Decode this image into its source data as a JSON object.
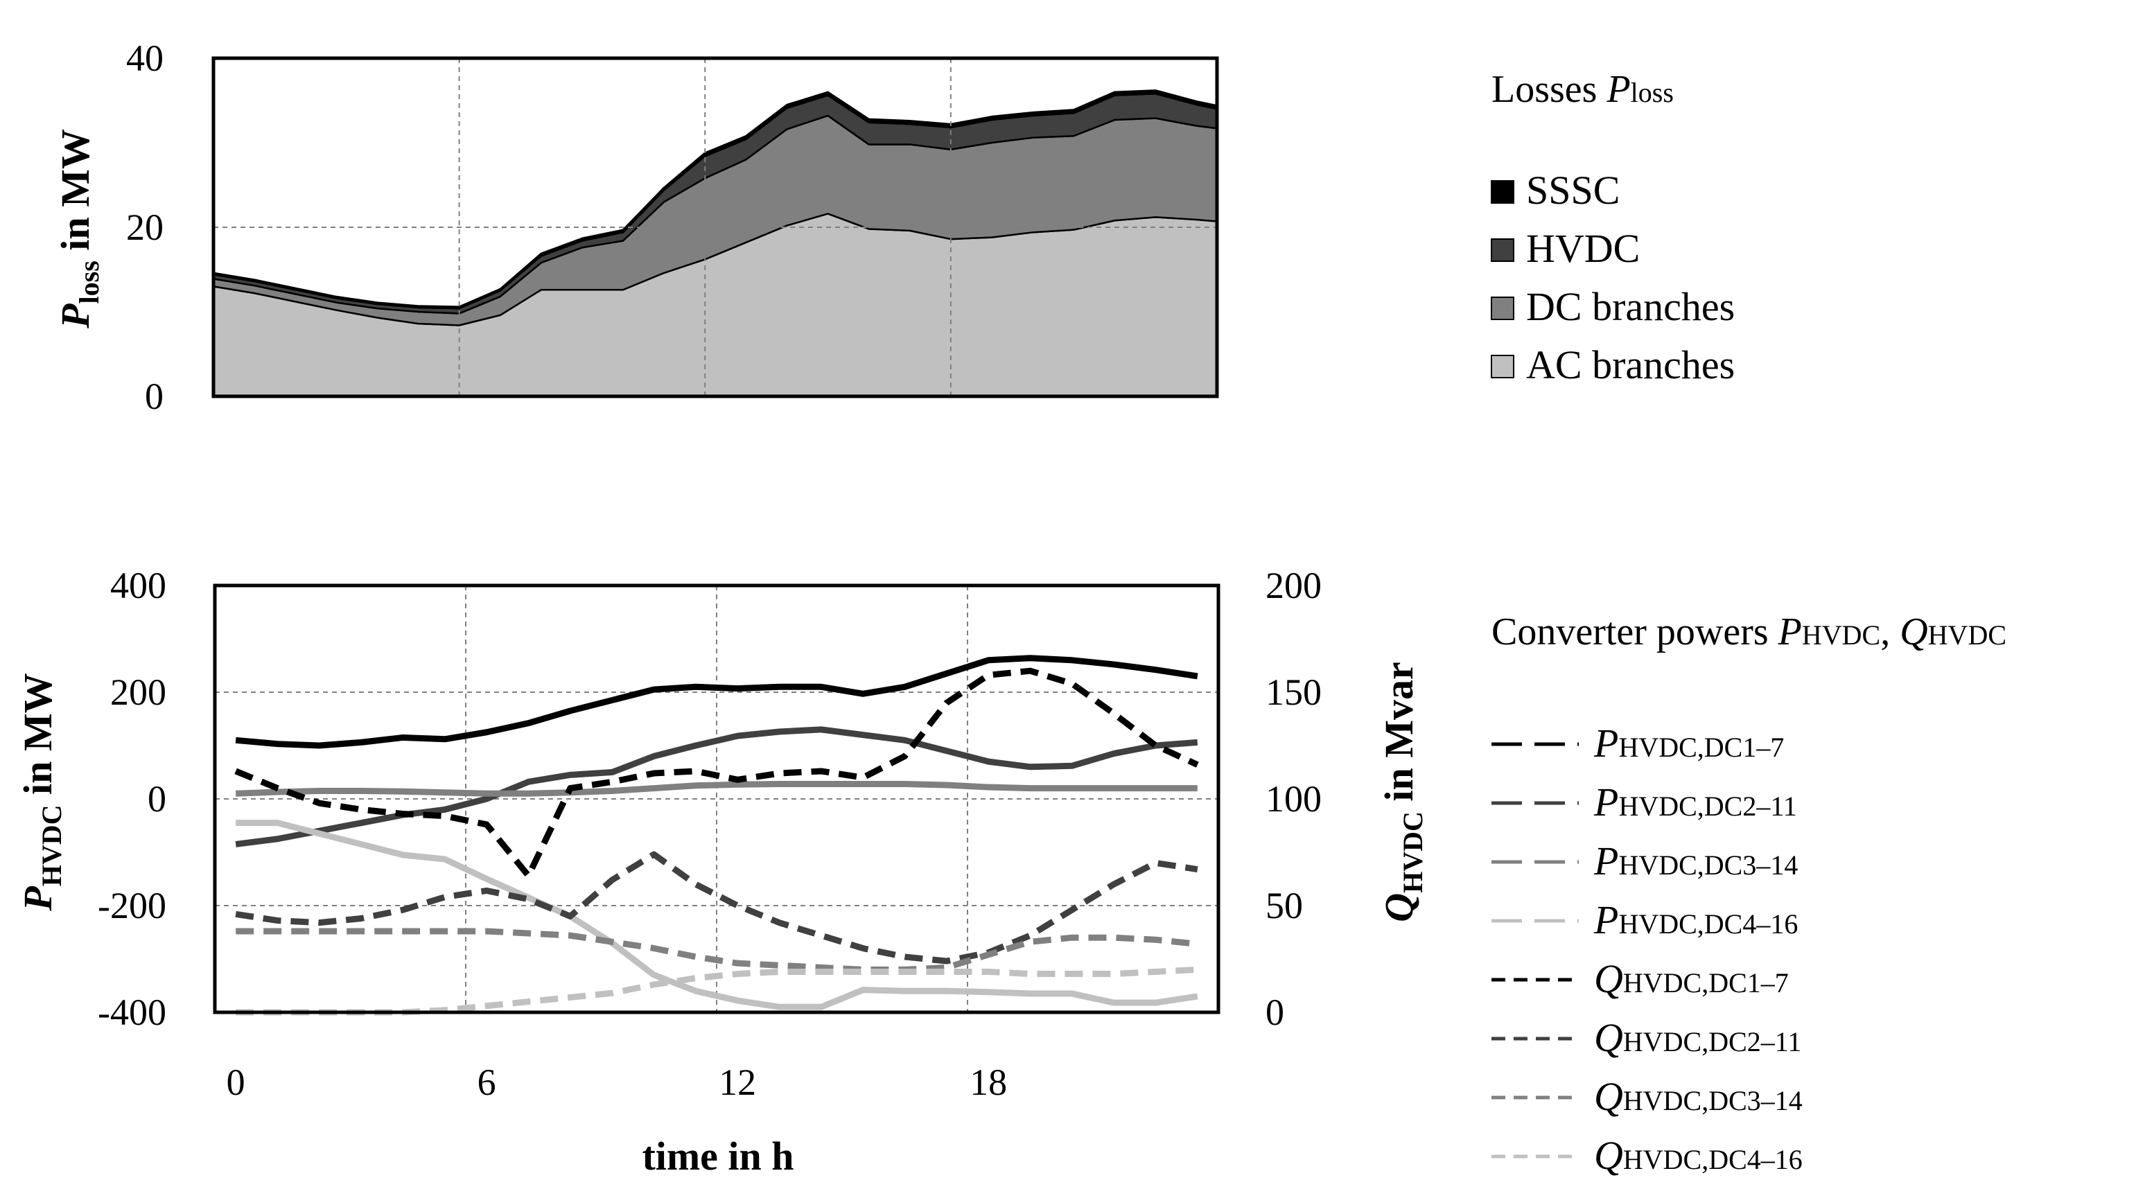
{
  "chart_data": [
    {
      "type": "area",
      "stacked": true,
      "title": "",
      "xlabel": "",
      "ylabel": "P_loss in MW",
      "ylabel_parts": {
        "main": "P",
        "sub": "loss",
        "rest": " in MW"
      },
      "xlim": [
        -1,
        23.5
      ],
      "ylim": [
        0,
        40
      ],
      "yticks": [
        0,
        20,
        40
      ],
      "xgrid": [
        5,
        11,
        17
      ],
      "x": [
        -1,
        0,
        1,
        2,
        3,
        4,
        5,
        6,
        7,
        8,
        9,
        10,
        11,
        12,
        13,
        14,
        15,
        16,
        17,
        18,
        19,
        20,
        21,
        22,
        23,
        23.5
      ],
      "series": [
        {
          "name": "AC branches",
          "color": "#c0c0c0",
          "values": [
            13,
            12.2,
            11.2,
            10.2,
            9.3,
            8.6,
            8.4,
            9.6,
            12.6,
            12.6,
            12.6,
            14.6,
            16.2,
            18.2,
            20.2,
            21.6,
            19.8,
            19.6,
            18.6,
            18.8,
            19.4,
            19.7,
            20.8,
            21.2,
            20.9,
            20.7
          ]
        },
        {
          "name": "DC branches",
          "color": "#808080",
          "values": [
            0.9,
            0.9,
            0.9,
            0.9,
            1.1,
            1.4,
            1.4,
            2.2,
            3.2,
            5,
            5.8,
            8.4,
            9.6,
            9.8,
            11.4,
            11.6,
            10,
            10.2,
            10.6,
            11.2,
            11.2,
            11.1,
            11.9,
            11.7,
            11.1,
            11
          ]
        },
        {
          "name": "HVDC",
          "color": "#404040",
          "values": [
            0.5,
            0.5,
            0.5,
            0.5,
            0.5,
            0.5,
            0.6,
            0.7,
            0.8,
            0.8,
            1,
            1.4,
            2.6,
            2.4,
            2.5,
            2.4,
            2.6,
            2.4,
            2.6,
            2.7,
            2.6,
            2.7,
            2.9,
            2.9,
            2.5,
            2.3
          ]
        },
        {
          "name": "SSSC",
          "color": "#000000",
          "values": [
            0.2,
            0.2,
            0.2,
            0.2,
            0.2,
            0.2,
            0.2,
            0.2,
            0.3,
            0.3,
            0.3,
            0.3,
            0.4,
            0.4,
            0.4,
            0.4,
            0.4,
            0.4,
            0.4,
            0.4,
            0.4,
            0.4,
            0.4,
            0.4,
            0.4,
            0.4
          ]
        }
      ],
      "legend": {
        "title": "Losses",
        "title_var": "P",
        "title_sub": "loss",
        "location": "right"
      }
    },
    {
      "type": "line",
      "title": "",
      "xlabel": "time in h",
      "ylabel": "P_HVDC in MW",
      "ylabel_parts": {
        "main": "P",
        "sub": "HVDC",
        "rest": " in MW"
      },
      "y2label": "Q_HVDC in Mvar",
      "y2label_parts": {
        "main": "Q",
        "sub": "HVDC",
        "rest": " in Mvar"
      },
      "xlim": [
        -1,
        23
      ],
      "ylim": [
        -400,
        400
      ],
      "y2lim": [
        0,
        200
      ],
      "xticks": [
        0,
        6,
        12,
        18
      ],
      "yticks": [
        -400,
        -200,
        0,
        200,
        400
      ],
      "y2ticks": [
        0,
        50,
        100,
        150,
        200
      ],
      "ytick_labels": [
        "-400",
        "-200",
        "0",
        "200",
        "400"
      ],
      "y2tick_labels": [
        "0",
        "50",
        "100",
        "150",
        "200"
      ],
      "x": [
        -0.5,
        0.5,
        1.5,
        2.5,
        3.5,
        4.5,
        5.5,
        6.5,
        7.5,
        8.5,
        9.5,
        10.5,
        11.5,
        12.5,
        13.5,
        14.5,
        15.5,
        16.5,
        17.5,
        18.5,
        19.5,
        20.5,
        21.5,
        22.5
      ],
      "series": [
        {
          "name": "P_HVDC,DC1–7",
          "label_var": "P",
          "label_sub": "HVDC,DC1–7",
          "axis": "left",
          "style": "solid",
          "color": "#000000",
          "values": [
            110,
            103,
            100,
            106,
            115,
            112,
            125,
            142,
            165,
            185,
            205,
            210,
            207,
            210,
            210,
            197,
            210,
            235,
            260,
            264,
            260,
            252,
            242,
            230
          ]
        },
        {
          "name": "P_HVDC,DC2–11",
          "label_var": "P",
          "label_sub": "HVDC,DC2–11",
          "axis": "left",
          "style": "solid",
          "color": "#404040",
          "values": [
            -85,
            -75,
            -60,
            -45,
            -30,
            -20,
            0,
            32,
            45,
            50,
            80,
            100,
            118,
            126,
            130,
            120,
            110,
            90,
            70,
            60,
            62,
            85,
            100,
            106
          ]
        },
        {
          "name": "P_HVDC,DC3–14",
          "label_var": "P",
          "label_sub": "HVDC,DC3–14",
          "axis": "left",
          "style": "solid",
          "color": "#808080",
          "values": [
            10,
            13,
            15,
            15,
            14,
            12,
            10,
            10,
            12,
            15,
            20,
            25,
            27,
            28,
            28,
            28,
            28,
            26,
            22,
            20,
            20,
            20,
            20,
            20
          ]
        },
        {
          "name": "P_HVDC,DC4–16",
          "label_var": "P",
          "label_sub": "HVDC,DC4–16",
          "axis": "left",
          "style": "solid",
          "color": "#c0c0c0",
          "values": [
            -45,
            -45,
            -65,
            -85,
            -105,
            -113,
            -150,
            -185,
            -220,
            -270,
            -330,
            -360,
            -378,
            -390,
            -390,
            -358,
            -360,
            -360,
            -362,
            -365,
            -365,
            -382,
            -382,
            -370
          ]
        },
        {
          "name": "Q_HVDC,DC1–7",
          "label_var": "Q",
          "label_sub": "HVDC,DC1–7",
          "axis": "right",
          "style": "dashed",
          "color": "#000000",
          "values": [
            113,
            105,
            98,
            95,
            93,
            92,
            88,
            64,
            105,
            108,
            112,
            113,
            109,
            112,
            113,
            110,
            120,
            145,
            158,
            160,
            154,
            140,
            125,
            116
          ]
        },
        {
          "name": "Q_HVDC,DC2–11",
          "label_var": "Q",
          "label_sub": "HVDC,DC2–11",
          "axis": "right",
          "style": "dashed",
          "color": "#404040",
          "values": [
            46,
            43,
            42,
            44,
            48,
            54,
            57,
            53,
            45,
            62,
            74,
            60,
            50,
            42,
            36,
            30,
            26,
            24,
            28,
            36,
            48,
            60,
            70,
            67
          ]
        },
        {
          "name": "Q_HVDC,DC3–14",
          "label_var": "Q",
          "label_sub": "HVDC,DC3–14",
          "axis": "right",
          "style": "dashed",
          "color": "#808080",
          "values": [
            38,
            38,
            38,
            38,
            38,
            38,
            38,
            37,
            36,
            33,
            30,
            26,
            23,
            22,
            21,
            20,
            20,
            21,
            27,
            33,
            35,
            35,
            34,
            32
          ]
        },
        {
          "name": "Q_HVDC,DC4–16",
          "label_var": "Q",
          "label_sub": "HVDC,DC4–16",
          "axis": "right",
          "style": "dashed",
          "color": "#c0c0c0",
          "values": [
            0,
            0,
            0,
            0,
            0,
            1,
            3,
            5,
            7,
            9,
            13,
            16,
            18,
            19,
            19,
            19,
            19,
            19,
            19,
            18,
            18,
            18,
            19,
            20
          ]
        }
      ],
      "legend": {
        "title": "Converter powers",
        "title_var1": "P",
        "title_sub1": "HVDC",
        "title_var2": "Q",
        "title_sub2": "HVDC",
        "location": "right"
      }
    }
  ]
}
